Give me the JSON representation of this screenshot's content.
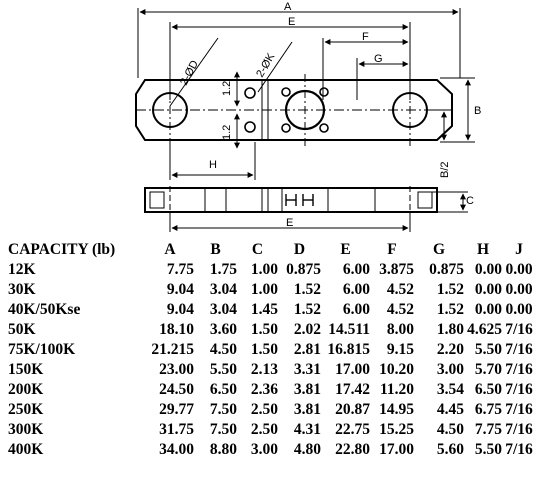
{
  "drawing": {
    "dim_labels": {
      "A": "A",
      "E": "E",
      "F": "F",
      "G": "G",
      "H": "H",
      "B": "B",
      "B_half": "B/2",
      "C": "C",
      "E_bottom": "E",
      "phi_D": "2-ØD",
      "phi_K": "2-ØK",
      "dim_1_2_top": "1.2",
      "dim_1_2_bottom": "1.2"
    }
  },
  "table": {
    "headers": [
      "CAPACITY (lb)",
      "A",
      "B",
      "C",
      "D",
      "E",
      "F",
      "G",
      "H",
      "J"
    ],
    "rows": [
      [
        "12K",
        "7.75",
        "1.75",
        "1.00",
        "0.875",
        "6.00",
        "3.875",
        "0.875",
        "0.00",
        "0.00"
      ],
      [
        "30K",
        "9.04",
        "3.04",
        "1.00",
        "1.52",
        "6.00",
        "4.52",
        "1.52",
        "0.00",
        "0.00"
      ],
      [
        "40K/50Kse",
        "9.04",
        "3.04",
        "1.45",
        "1.52",
        "6.00",
        "4.52",
        "1.52",
        "0.00",
        "0.00"
      ],
      [
        "50K",
        "18.10",
        "3.60",
        "1.50",
        "2.02",
        "14.511",
        "8.00",
        "1.80",
        "4.625",
        "7/16"
      ],
      [
        "75K/100K",
        "21.215",
        "4.50",
        "1.50",
        "2.81",
        "16.815",
        "9.15",
        "2.20",
        "5.50",
        "7/16"
      ],
      [
        "150K",
        "23.00",
        "5.50",
        "2.13",
        "3.31",
        "17.00",
        "10.20",
        "3.00",
        "5.70",
        "7/16"
      ],
      [
        "200K",
        "24.50",
        "6.50",
        "2.36",
        "3.81",
        "17.42",
        "11.20",
        "3.54",
        "6.50",
        "7/16"
      ],
      [
        "250K",
        "29.77",
        "7.50",
        "2.50",
        "3.81",
        "20.87",
        "14.95",
        "4.45",
        "6.75",
        "7/16"
      ],
      [
        "300K",
        "31.75",
        "7.50",
        "2.50",
        "4.31",
        "22.75",
        "15.25",
        "4.50",
        "7.75",
        "7/16"
      ],
      [
        "400K",
        "34.00",
        "8.80",
        "3.00",
        "4.80",
        "22.80",
        "17.00",
        "5.60",
        "5.50",
        "7/16"
      ]
    ]
  }
}
